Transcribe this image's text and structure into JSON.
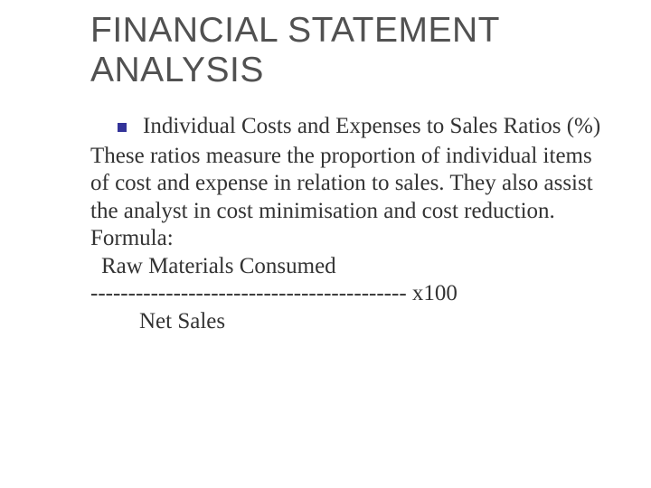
{
  "slide": {
    "title": "FINANCIAL STATEMENT ANALYSIS",
    "bullet_heading": "Individual Costs and Expenses to Sales Ratios (%)",
    "body1": "These ratios measure the proportion of individual items of cost and expense in relation to sales. They also assist the analyst in cost minimisation and cost reduction.",
    "formula_label": "Formula:",
    "formula_numerator": "Raw Materials Consumed",
    "formula_divider": "------------------------------------------ x100",
    "formula_denominator": "Net Sales"
  },
  "style": {
    "background_color": "#ffffff",
    "title_color": "#515151",
    "title_fontsize": 39,
    "title_font": "Verdana",
    "body_color": "#333333",
    "body_fontsize": 25,
    "body_font": "Times New Roman",
    "bullet_color": "#333399",
    "bullet_size": 10,
    "slide_width": 720,
    "slide_height": 540
  }
}
